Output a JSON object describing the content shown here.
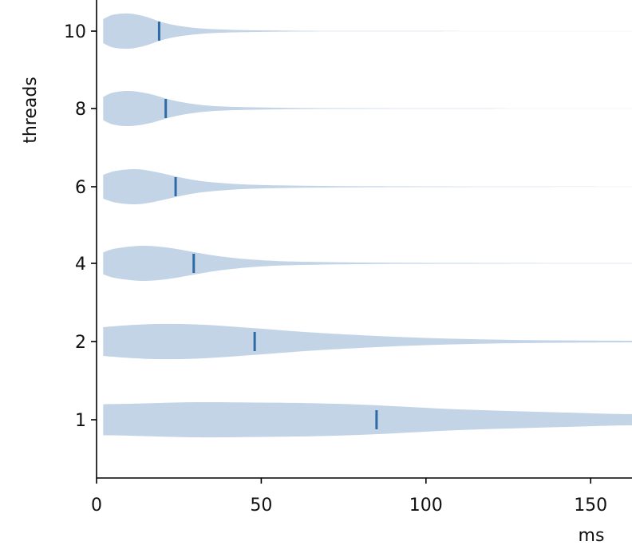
{
  "chart_data": {
    "type": "violin",
    "orientation": "horizontal",
    "title": "",
    "xlabel": "ms",
    "ylabel": "threads",
    "xlim": [
      0,
      163
    ],
    "x_ticks": [
      0,
      50,
      100,
      150
    ],
    "x_tick_labels": [
      "0",
      "50",
      "100",
      "150"
    ],
    "y_tick_labels": [
      "1",
      "2",
      "4",
      "6",
      "8",
      "10"
    ],
    "grid": false,
    "colors": {
      "body": "#c3d4e7",
      "median": "#2f6aa6",
      "axis": "#000000"
    },
    "series": [
      {
        "name": "1",
        "median": 85,
        "profile": [
          [
            2,
            0.78
          ],
          [
            10,
            0.8
          ],
          [
            30,
            0.88
          ],
          [
            50,
            0.86
          ],
          [
            65,
            0.83
          ],
          [
            80,
            0.76
          ],
          [
            95,
            0.64
          ],
          [
            110,
            0.52
          ],
          [
            125,
            0.44
          ],
          [
            140,
            0.37
          ],
          [
            155,
            0.3
          ],
          [
            163,
            0.28
          ]
        ]
      },
      {
        "name": "2",
        "median": 48,
        "profile": [
          [
            2,
            0.72
          ],
          [
            8,
            0.8
          ],
          [
            18,
            0.88
          ],
          [
            30,
            0.86
          ],
          [
            42,
            0.74
          ],
          [
            55,
            0.58
          ],
          [
            65,
            0.46
          ],
          [
            80,
            0.32
          ],
          [
            100,
            0.18
          ],
          [
            120,
            0.1
          ],
          [
            140,
            0.06
          ],
          [
            163,
            0.04
          ]
        ]
      },
      {
        "name": "4",
        "median": 29.5,
        "profile": [
          [
            2,
            0.55
          ],
          [
            6,
            0.75
          ],
          [
            14,
            0.88
          ],
          [
            22,
            0.78
          ],
          [
            30,
            0.55
          ],
          [
            38,
            0.34
          ],
          [
            48,
            0.18
          ],
          [
            60,
            0.09
          ],
          [
            80,
            0.04
          ],
          [
            110,
            0.02
          ],
          [
            140,
            0.012
          ],
          [
            163,
            0.01
          ]
        ]
      },
      {
        "name": "6",
        "median": 24,
        "profile": [
          [
            2,
            0.6
          ],
          [
            6,
            0.8
          ],
          [
            12,
            0.88
          ],
          [
            18,
            0.74
          ],
          [
            25,
            0.48
          ],
          [
            32,
            0.28
          ],
          [
            42,
            0.14
          ],
          [
            55,
            0.07
          ],
          [
            75,
            0.03
          ],
          [
            100,
            0.015
          ],
          [
            130,
            0.008
          ],
          [
            163,
            0.005
          ]
        ]
      },
      {
        "name": "8",
        "median": 21,
        "profile": [
          [
            2,
            0.58
          ],
          [
            5,
            0.8
          ],
          [
            10,
            0.88
          ],
          [
            16,
            0.74
          ],
          [
            22,
            0.46
          ],
          [
            28,
            0.26
          ],
          [
            36,
            0.12
          ],
          [
            48,
            0.06
          ],
          [
            65,
            0.025
          ],
          [
            90,
            0.012
          ],
          [
            120,
            0.006
          ],
          [
            163,
            0.004
          ]
        ]
      },
      {
        "name": "10",
        "median": 19,
        "profile": [
          [
            2,
            0.6
          ],
          [
            5,
            0.82
          ],
          [
            10,
            0.88
          ],
          [
            15,
            0.72
          ],
          [
            20,
            0.44
          ],
          [
            26,
            0.24
          ],
          [
            34,
            0.11
          ],
          [
            45,
            0.05
          ],
          [
            60,
            0.02
          ],
          [
            85,
            0.01
          ],
          [
            115,
            0.005
          ],
          [
            163,
            0.003
          ]
        ]
      }
    ]
  }
}
